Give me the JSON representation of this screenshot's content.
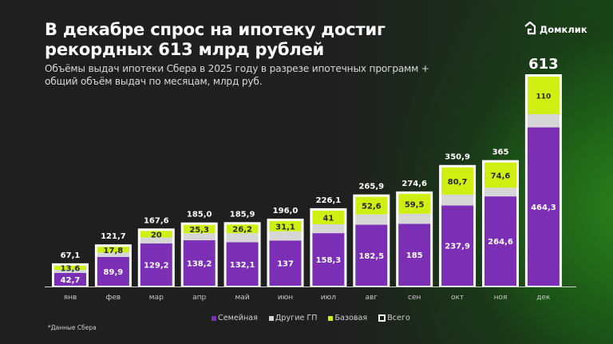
{
  "header": {
    "title": "В декабре спрос на ипотеку достиг рекордных 613 млрд рублей",
    "subtitle": "Объёмы выдач ипотеки Сбера в 2025 году в разрезе ипотечных программ + общий объём выдач по месяцам, млрд руб.",
    "logo_text": "Домклик",
    "logo_icon": "home-logo-icon"
  },
  "footnote": "*Данные Сбера",
  "legend": [
    {
      "key": "family",
      "label": "Семейная",
      "color": "#7a2fb5"
    },
    {
      "key": "other",
      "label": "Другие ГП",
      "color": "#d6d6d6"
    },
    {
      "key": "base",
      "label": "Базовая",
      "color": "#cfee12"
    },
    {
      "key": "total",
      "label": "Всего",
      "color": "#ffffff"
    }
  ],
  "colors": {
    "family": "#7a2fb5",
    "other": "#d6d6d6",
    "base": "#cfee12",
    "bar_border": "#ffffff",
    "label_light": "#ffffff",
    "label_dark": "#2a2a2a",
    "total_label": "#ffffff",
    "axis": "#cfcfcf",
    "tick": "#c8c8c8"
  },
  "chart_data": {
    "type": "bar",
    "stacked": true,
    "title": "В декабре спрос на ипотеку достиг рекордных 613 млрд рублей",
    "subtitle": "Объёмы выдач ипотеки Сбера в 2025 году в разрезе ипотечных программ + общий объём выдач по месяцам, млрд руб.",
    "xlabel": "",
    "ylabel": "",
    "ylim": [
      0,
      613
    ],
    "grid": false,
    "legend_position": "bottom",
    "categories": [
      "янв",
      "фев",
      "мар",
      "апр",
      "май",
      "июн",
      "июл",
      "авг",
      "сен",
      "окт",
      "ноя",
      "дек"
    ],
    "series": [
      {
        "name": "Семейная",
        "key": "family",
        "values": [
          42.7,
          89.9,
          129.2,
          138.2,
          132.1,
          137,
          158.3,
          182.5,
          185,
          237.9,
          264.6,
          464.3
        ],
        "labels": [
          "42,7",
          "89,9",
          "129,2",
          "138,2",
          "132,1",
          "137",
          "158,3",
          "182,5",
          "185",
          "237,9",
          "264,6",
          "464,3"
        ]
      },
      {
        "name": "Другие ГП",
        "key": "other",
        "printed_labels": false,
        "values": [],
        "other_derived": [
          10.8,
          14.0,
          18.4,
          21.5,
          27.6,
          27.9,
          26.8,
          30.8,
          30.1,
          32.3,
          25.8,
          38.7
        ],
        "labels": []
      },
      {
        "name": "Базовая",
        "key": "base",
        "values": [
          13.6,
          17.8,
          20,
          25.3,
          26.2,
          31.1,
          41,
          52.6,
          59.5,
          80.7,
          74.6,
          110
        ],
        "labels": [
          "13,6",
          "17,8",
          "20",
          "25,3",
          "26,2",
          "31,1",
          "41",
          "52,6",
          "59,5",
          "80,7",
          "74,6",
          "110"
        ]
      }
    ],
    "totals": {
      "name": "Всего",
      "values": [
        67.1,
        121.7,
        167.6,
        185.0,
        185.9,
        196.0,
        226.1,
        265.9,
        274.6,
        350.9,
        365,
        613
      ],
      "labels": [
        "67,1",
        "121,7",
        "167,6",
        "185,0",
        "185,9",
        "196,0",
        "226,1",
        "265,9",
        "274,6",
        "350,9",
        "365",
        "613"
      ]
    }
  }
}
